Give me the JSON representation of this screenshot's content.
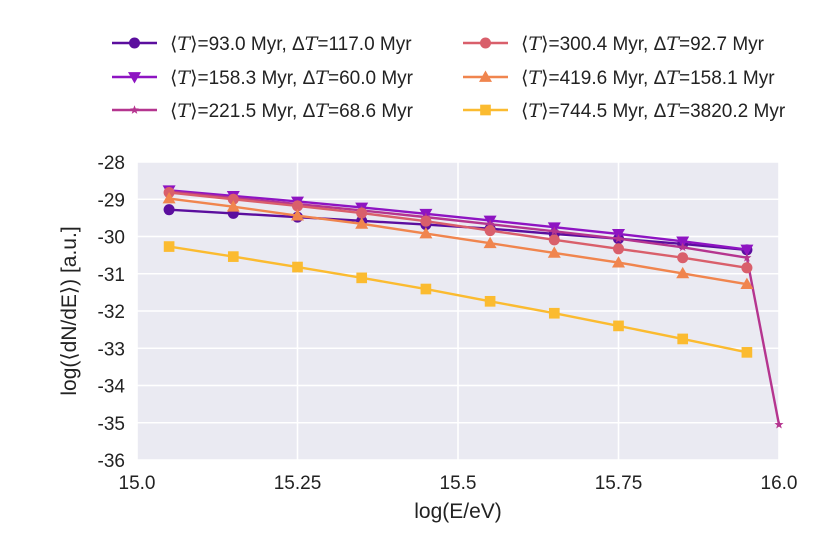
{
  "chart_data": {
    "type": "line",
    "title": "",
    "xlabel": "log(E/eV)",
    "ylabel": "log(⟨dN/dE⟩) [a.u.]",
    "xlim": [
      15.0,
      16.0
    ],
    "ylim": [
      -36,
      -28
    ],
    "xticks": [
      15.0,
      15.25,
      15.5,
      15.75,
      16.0
    ],
    "xtick_labels": [
      "15.0",
      "15.25",
      "15.5",
      "15.75",
      "16.0"
    ],
    "yticks": [
      -28,
      -29,
      -30,
      -31,
      -32,
      -33,
      -34,
      -35,
      -36
    ],
    "ytick_labels": [
      "-28",
      "-29",
      "-30",
      "-31",
      "-32",
      "-33",
      "-34",
      "-35",
      "-36"
    ],
    "grid": true,
    "legend_position": "top, above plot, two columns",
    "series": [
      {
        "name": "⟨T⟩=93.0 Myr, ΔT=117.0 Myr",
        "label_parts": [
          "⟨",
          "T",
          "⟩=93.0 Myr, Δ",
          "T",
          "=117.0 Myr"
        ],
        "color": "#5b0e9e",
        "marker": "circle",
        "x": [
          15.05,
          15.15,
          15.25,
          15.35,
          15.45,
          15.55,
          15.65,
          15.75,
          15.85,
          15.95
        ],
        "y": [
          -29.28,
          -29.38,
          -29.48,
          -29.58,
          -29.68,
          -29.79,
          -29.93,
          -30.06,
          -30.2,
          -30.36
        ]
      },
      {
        "name": "⟨T⟩=158.3 Myr, ΔT=60.0 Myr",
        "label_parts": [
          "⟨",
          "T",
          "⟩=158.3 Myr, Δ",
          "T",
          "=60.0 Myr"
        ],
        "color": "#8e14c2",
        "marker": "triangle-down",
        "x": [
          15.05,
          15.15,
          15.25,
          15.35,
          15.45,
          15.55,
          15.65,
          15.75,
          15.85,
          15.95
        ],
        "y": [
          -28.76,
          -28.91,
          -29.06,
          -29.22,
          -29.39,
          -29.57,
          -29.75,
          -29.93,
          -30.13,
          -30.35
        ]
      },
      {
        "name": "⟨T⟩=221.5 Myr, ΔT=68.6 Myr",
        "label_parts": [
          "⟨",
          "T",
          "⟩=221.5 Myr, Δ",
          "T",
          "=68.6 Myr"
        ],
        "color": "#b5358f",
        "marker": "star",
        "x": [
          15.05,
          15.15,
          15.25,
          15.35,
          15.45,
          15.55,
          15.65,
          15.75,
          15.85,
          15.95,
          16.0
        ],
        "y": [
          -28.79,
          -28.96,
          -29.13,
          -29.3,
          -29.48,
          -29.67,
          -29.86,
          -30.06,
          -30.29,
          -30.57,
          -35.05
        ]
      },
      {
        "name": "⟨T⟩=300.4 Myr, ΔT=92.7 Myr",
        "label_parts": [
          "⟨",
          "T",
          "⟩=300.4 Myr, Δ",
          "T",
          "=92.7 Myr"
        ],
        "color": "#d95f6b",
        "marker": "circle",
        "x": [
          15.05,
          15.15,
          15.25,
          15.35,
          15.45,
          15.55,
          15.65,
          15.75,
          15.85,
          15.95
        ],
        "y": [
          -28.82,
          -29.0,
          -29.18,
          -29.37,
          -29.59,
          -29.84,
          -30.09,
          -30.33,
          -30.57,
          -30.84
        ]
      },
      {
        "name": "⟨T⟩=419.6 Myr, ΔT=158.1 Myr",
        "label_parts": [
          "⟨",
          "T",
          "⟩=419.6 Myr, Δ",
          "T",
          "=158.1 Myr"
        ],
        "color": "#f0854e",
        "marker": "triangle-up",
        "x": [
          15.05,
          15.15,
          15.25,
          15.35,
          15.45,
          15.55,
          15.65,
          15.75,
          15.85,
          15.95
        ],
        "y": [
          -28.98,
          -29.2,
          -29.44,
          -29.66,
          -29.92,
          -30.18,
          -30.44,
          -30.7,
          -30.99,
          -31.28
        ]
      },
      {
        "name": "⟨T⟩=744.5 Myr, ΔT=3820.2 Myr",
        "label_parts": [
          "⟨",
          "T",
          "⟩=744.5 Myr, Δ",
          "T",
          "=3820.2 Myr"
        ],
        "color": "#fbbb30",
        "marker": "square",
        "x": [
          15.05,
          15.15,
          15.25,
          15.35,
          15.45,
          15.55,
          15.65,
          15.75,
          15.85,
          15.95
        ],
        "y": [
          -30.27,
          -30.54,
          -30.82,
          -31.11,
          -31.41,
          -31.74,
          -32.06,
          -32.4,
          -32.75,
          -33.11
        ]
      }
    ]
  }
}
